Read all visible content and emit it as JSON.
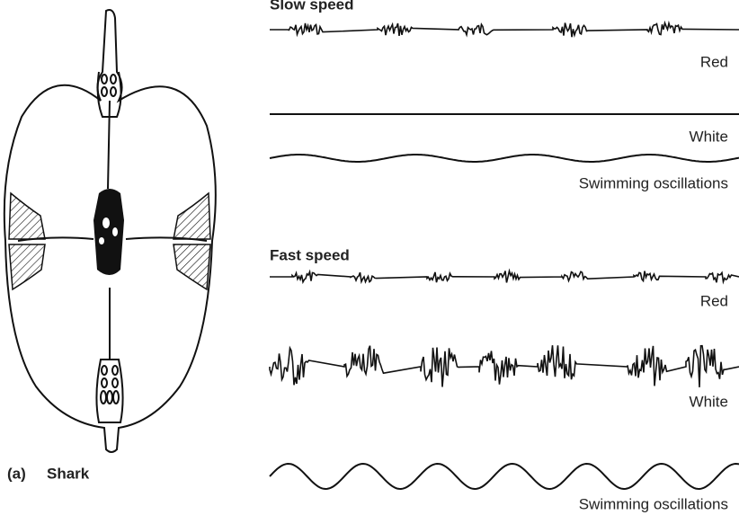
{
  "panel": {
    "label": "(a)",
    "name": "Shark"
  },
  "traces": [
    {
      "title": "Slow speed",
      "rows": [
        "Red",
        "White",
        "Swimming oscillations"
      ]
    },
    {
      "title": "Fast speed",
      "rows": [
        "Red",
        "White",
        "Swimming oscillations"
      ]
    }
  ]
}
